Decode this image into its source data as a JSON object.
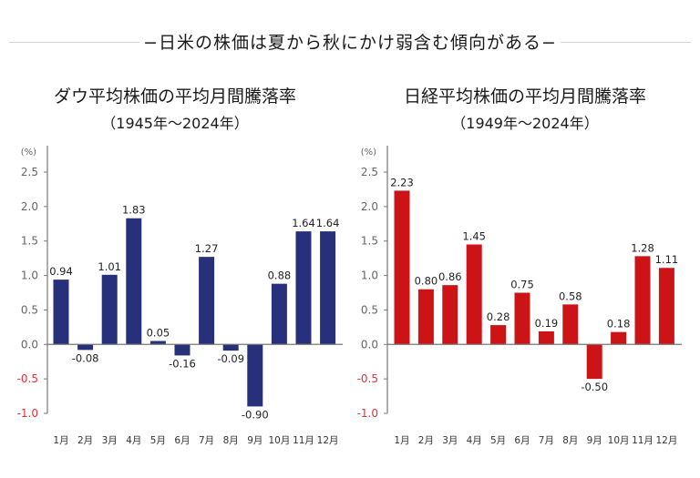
{
  "headline": "−日米の株価は夏から秋にかけ弱含む傾向がある−",
  "chart_data": [
    {
      "type": "bar",
      "title": "ダウ平均株価の平均月間騰落率",
      "subtitle": "（1945年〜2024年）",
      "ylabel": "(%)",
      "xlabel": "",
      "ylim": [
        -1.0,
        2.5
      ],
      "yticks": [
        "2.5",
        "2.0",
        "1.5",
        "1.0",
        "0.5",
        "0.0",
        "-0.5",
        "-1.0"
      ],
      "ytick_values": [
        2.5,
        2.0,
        1.5,
        1.0,
        0.5,
        0.0,
        -0.5,
        -1.0
      ],
      "grid": false,
      "color": "#27307a",
      "negative_tick_color": "#e8303a",
      "categories": [
        "1月",
        "2月",
        "3月",
        "4月",
        "5月",
        "6月",
        "7月",
        "8月",
        "9月",
        "10月",
        "11月",
        "12月"
      ],
      "values": [
        0.94,
        -0.08,
        1.01,
        1.83,
        0.05,
        -0.16,
        1.27,
        -0.09,
        -0.9,
        0.88,
        1.64,
        1.64
      ],
      "value_labels": [
        "0.94",
        "-0.08",
        "1.01",
        "1.83",
        "0.05",
        "-0.16",
        "1.27",
        "-0.09",
        "-0.90",
        "0.88",
        "1.64",
        "1.64"
      ]
    },
    {
      "type": "bar",
      "title": "日経平均株価の平均月間騰落率",
      "subtitle": "（1949年〜2024年）",
      "ylabel": "(%)",
      "xlabel": "",
      "ylim": [
        -1.0,
        2.5
      ],
      "yticks": [
        "2.5",
        "2.0",
        "1.5",
        "1.0",
        "0.5",
        "0.0",
        "-0.5",
        "-1.0"
      ],
      "ytick_values": [
        2.5,
        2.0,
        1.5,
        1.0,
        0.5,
        0.0,
        -0.5,
        -1.0
      ],
      "grid": false,
      "color": "#cc1417",
      "negative_tick_color": "#e8303a",
      "categories": [
        "1月",
        "2月",
        "3月",
        "4月",
        "5月",
        "6月",
        "7月",
        "8月",
        "9月",
        "10月",
        "11月",
        "12月"
      ],
      "values": [
        2.23,
        0.8,
        0.86,
        1.45,
        0.28,
        0.75,
        0.19,
        0.58,
        -0.5,
        0.18,
        1.28,
        1.11
      ],
      "value_labels": [
        "2.23",
        "0.80",
        "0.86",
        "1.45",
        "0.28",
        "0.75",
        "0.19",
        "0.58",
        "-0.50",
        "0.18",
        "1.28",
        "1.11"
      ]
    }
  ]
}
